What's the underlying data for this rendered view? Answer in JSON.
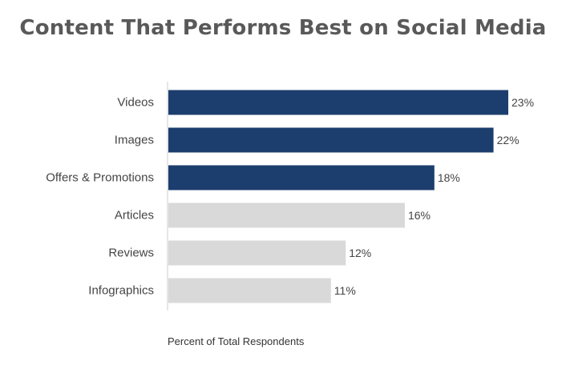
{
  "chart_data": {
    "type": "bar",
    "orientation": "horizontal",
    "title": "Content That Performs Best on Social Media",
    "xlabel": "Percent of Total Respondents",
    "ylabel": "",
    "categories": [
      "Videos",
      "Images",
      "Offers & Promotions",
      "Articles",
      "Reviews",
      "Infographics"
    ],
    "values": [
      23,
      22,
      18,
      16,
      12,
      11
    ],
    "value_labels": [
      "23%",
      "22%",
      "18%",
      "16%",
      "12%",
      "11%"
    ],
    "highlighted": [
      true,
      true,
      true,
      false,
      false,
      false
    ],
    "xlim": [
      0,
      23
    ],
    "grid": false,
    "legend": "none",
    "colors": {
      "highlight": "#1c3e6e",
      "muted": "#d9d9d9",
      "axis": "#cccccc",
      "text": "#444444",
      "title": "#595959"
    }
  }
}
